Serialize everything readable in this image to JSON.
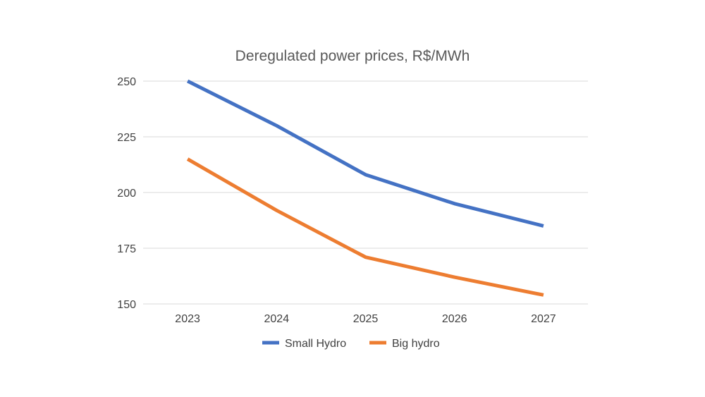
{
  "chart_data": {
    "type": "line",
    "title": "Deregulated power prices, R$/MWh",
    "xlabel": "",
    "ylabel": "",
    "categories": [
      "2023",
      "2024",
      "2025",
      "2026",
      "2027"
    ],
    "ylim": [
      150,
      250
    ],
    "yticks": [
      150,
      175,
      200,
      225,
      250
    ],
    "grid": true,
    "legend": "bottom",
    "series": [
      {
        "name": "Small Hydro",
        "color": "#4472c4",
        "values": [
          250,
          230,
          208,
          195,
          185
        ]
      },
      {
        "name": "Big hydro",
        "color": "#ed7d31",
        "values": [
          215,
          192,
          171,
          162,
          154
        ]
      }
    ]
  }
}
